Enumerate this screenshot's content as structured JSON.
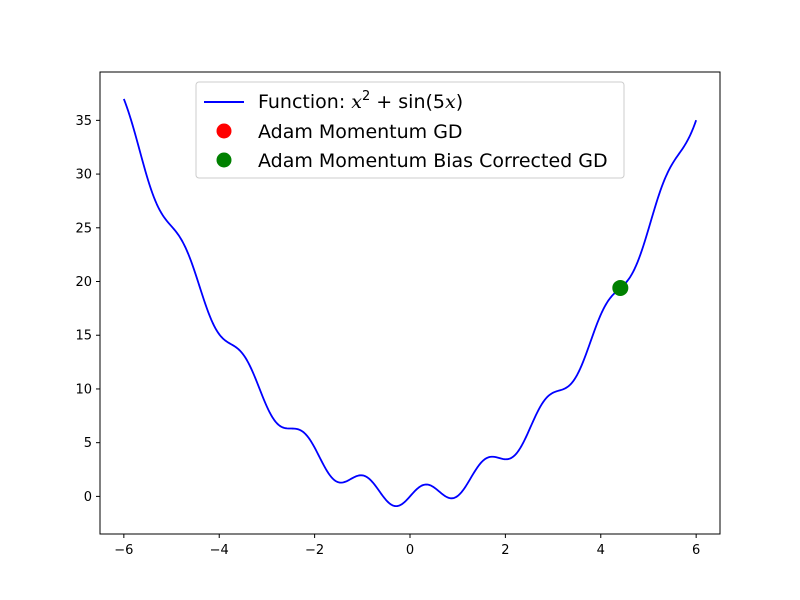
{
  "chart_data": {
    "type": "line",
    "title": "",
    "xlabel": "",
    "ylabel": "",
    "xlim": [
      -6.5,
      6.5
    ],
    "ylim": [
      -3.5,
      39.5
    ],
    "x_ticks": [
      -6,
      -4,
      -2,
      0,
      2,
      4,
      6
    ],
    "y_ticks": [
      0,
      5,
      10,
      15,
      20,
      25,
      30,
      35
    ],
    "x_tick_labels": [
      "−6",
      "−4",
      "−2",
      "0",
      "2",
      "4",
      "6"
    ],
    "y_tick_labels": [
      "0",
      "5",
      "10",
      "15",
      "20",
      "25",
      "30",
      "35"
    ],
    "grid": false,
    "legend_position": "top-center",
    "series": [
      {
        "kind": "line",
        "name": "Function: x² + sin(5x)",
        "color": "#0000ff",
        "function": "x^2 + sin(5x)",
        "x_range": [
          -6,
          6
        ],
        "samples": 400
      },
      {
        "kind": "scatter",
        "name": "Adam Momentum GD",
        "color": "#ff0000",
        "points": []
      },
      {
        "kind": "scatter",
        "name": "Adam Momentum Bias Corrected GD",
        "color": "#008000",
        "points": [
          {
            "x": 4.41,
            "y": 19.4
          }
        ]
      }
    ]
  },
  "legend": {
    "entries": [
      {
        "prefix": "Function: ",
        "math_var": "x",
        "math_sup": "2",
        "math_op": " + sin(5",
        "math_var2": "x",
        "math_close": ")"
      },
      {
        "label": "Adam Momentum GD"
      },
      {
        "label": "Adam Momentum Bias Corrected GD"
      }
    ]
  }
}
